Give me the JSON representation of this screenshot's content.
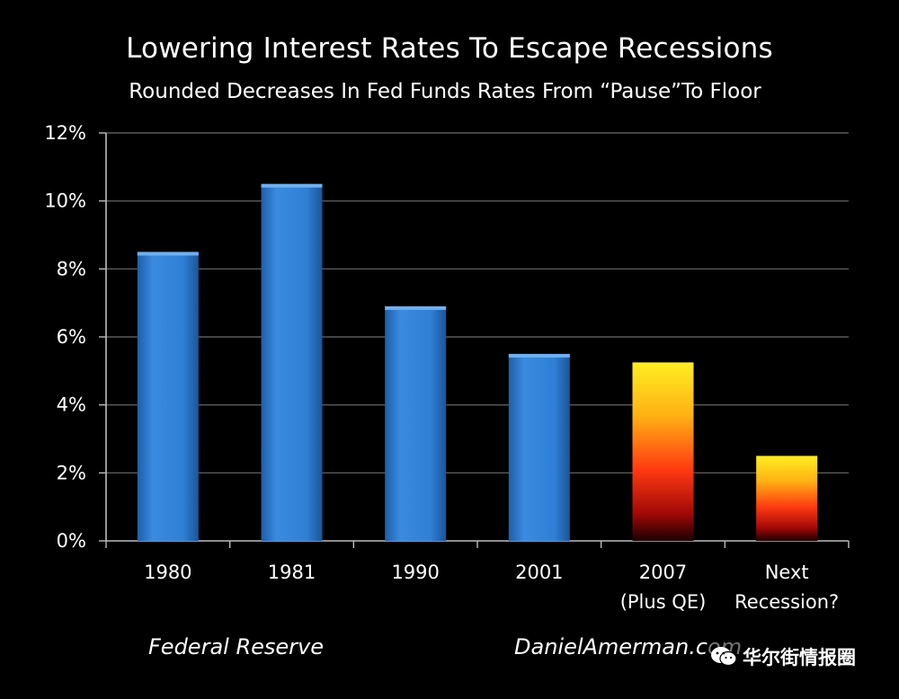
{
  "chart_data": {
    "type": "bar",
    "title": "Lowering Interest Rates To Escape Recessions",
    "subtitle": "Rounded Decreases In Fed Funds Rates From “Pause”To Floor",
    "categories": [
      [
        "1980"
      ],
      [
        "1981"
      ],
      [
        "1990"
      ],
      [
        "2001"
      ],
      [
        "2007",
        "(Plus QE)"
      ],
      [
        "Next",
        "Recession?"
      ]
    ],
    "values": [
      8.5,
      10.5,
      6.9,
      5.5,
      5.25,
      2.5
    ],
    "bar_styles": [
      "blue",
      "blue",
      "blue",
      "blue",
      "fire",
      "fire"
    ],
    "unit": "%",
    "ylim": [
      0,
      12
    ],
    "yticks": [
      0,
      2,
      4,
      6,
      8,
      10,
      12
    ],
    "ytick_labels": [
      "0%",
      "2%",
      "4%",
      "6%",
      "8%",
      "10%",
      "12%"
    ],
    "grid": true,
    "xlabel": "",
    "ylabel": ""
  },
  "colors": {
    "background": "#000000",
    "blue_bar": "#2f7fd4",
    "blue_bar_dark": "#1f5fa8",
    "fire_top": "#ffe81a",
    "fire_mid": "#ff7a10",
    "fire_bottom": "#1a0000",
    "gridline": "#5a5a5a"
  },
  "footer": {
    "source_left": "Federal Reserve",
    "source_right": "DanielAmerman.com"
  },
  "watermark": {
    "text": "华尔街情报圈",
    "icon": "wechat-icon"
  }
}
